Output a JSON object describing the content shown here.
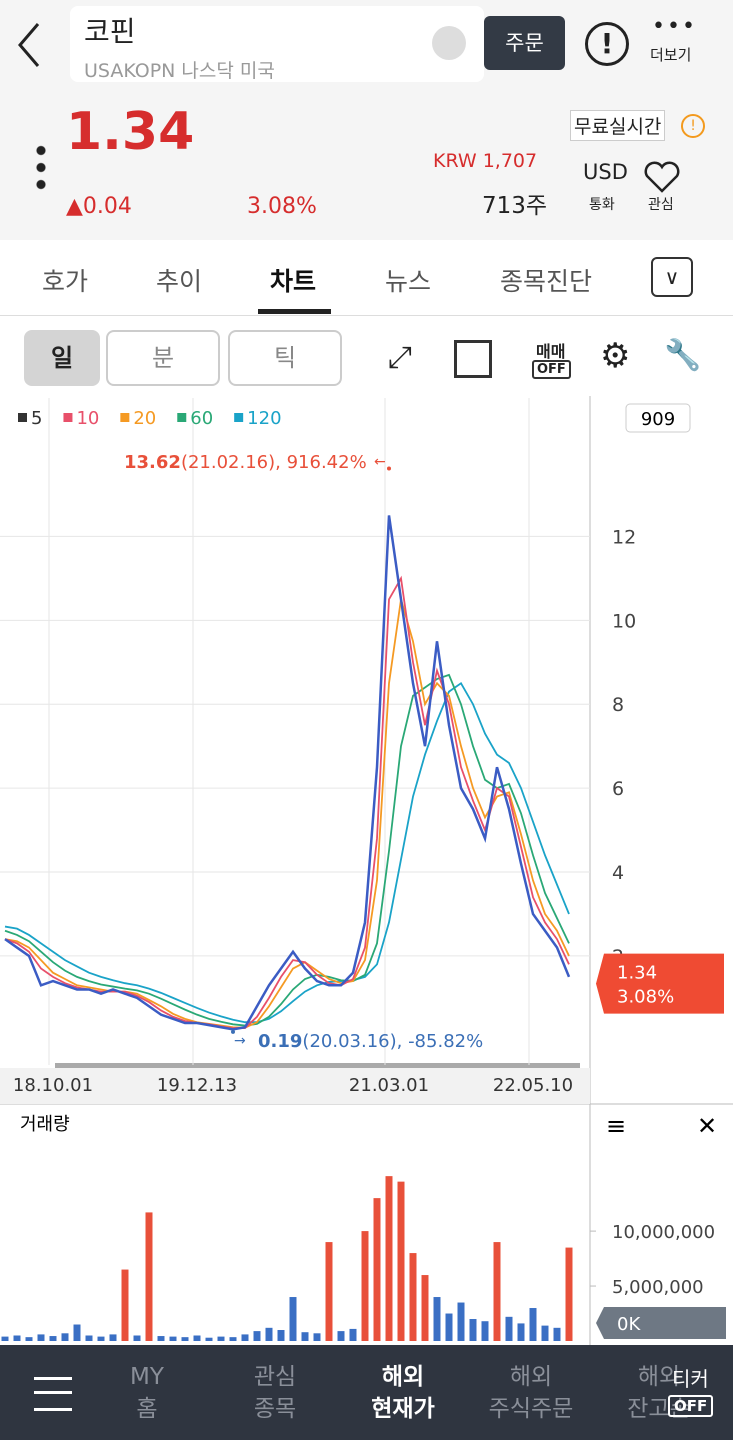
{
  "header": {
    "name": "코핀",
    "sub": "USAKOPN 나스닥 미국",
    "order": "주문",
    "more": "더보기",
    "price": "1.34",
    "change": "0.04",
    "change_pct": "3.08%",
    "realtime": "무료실시간",
    "krw": "KRW 1,707",
    "shares": "713주",
    "currency": "USD",
    "currency_label": "통화",
    "watch": "관심"
  },
  "tabs": [
    "호가",
    "추이",
    "차트",
    "뉴스",
    "종목진단"
  ],
  "toolbar": {
    "periods": [
      "일",
      "분",
      "틱"
    ],
    "trade": "매매",
    "trade_state": "OFF"
  },
  "chart_data": [
    {
      "type": "line",
      "box_label": "909",
      "categories": [
        null,
        null,
        null,
        null,
        "18.10.01",
        null,
        null,
        null,
        null,
        null,
        null,
        null,
        null,
        null,
        null,
        null,
        "19.12.13",
        null,
        null,
        null,
        null,
        null,
        null,
        null,
        null,
        null,
        null,
        null,
        null,
        null,
        null,
        null,
        "21.03.01",
        null,
        null,
        null,
        null,
        null,
        null,
        null,
        null,
        null,
        null,
        null,
        "22.05.10",
        null,
        null,
        null
      ],
      "series": [
        {
          "name": "5",
          "color": "#3b5cc4",
          "legend_color": "#333333",
          "values": [
            2.4,
            2.2,
            2.0,
            1.3,
            1.4,
            1.3,
            1.2,
            1.2,
            1.1,
            1.2,
            1.1,
            1.0,
            0.8,
            0.6,
            0.5,
            0.4,
            0.4,
            0.35,
            0.3,
            0.25,
            0.3,
            0.8,
            1.3,
            1.7,
            2.1,
            1.7,
            1.4,
            1.3,
            1.3,
            1.6,
            2.8,
            6.5,
            12.5,
            10.5,
            8.5,
            7.0,
            9.5,
            7.5,
            6.0,
            5.5,
            4.8,
            6.5,
            5.5,
            4.2,
            3.0,
            2.6,
            2.2,
            1.5
          ]
        },
        {
          "name": "10",
          "color": "#e8506a",
          "legend_color": "#e8506a",
          "values": [
            2.4,
            2.3,
            2.1,
            1.7,
            1.5,
            1.35,
            1.25,
            1.2,
            1.15,
            1.15,
            1.15,
            1.05,
            0.9,
            0.7,
            0.55,
            0.45,
            0.4,
            0.37,
            0.32,
            0.28,
            0.28,
            0.55,
            1.0,
            1.5,
            1.9,
            1.85,
            1.55,
            1.35,
            1.3,
            1.45,
            2.2,
            4.8,
            10.5,
            11.0,
            9.0,
            7.5,
            8.8,
            8.0,
            6.5,
            5.7,
            5.0,
            6.0,
            5.8,
            4.6,
            3.4,
            2.8,
            2.4,
            1.8
          ]
        },
        {
          "name": "20",
          "color": "#f59a23",
          "legend_color": "#f59a23",
          "values": [
            2.4,
            2.35,
            2.2,
            1.9,
            1.6,
            1.45,
            1.3,
            1.25,
            1.2,
            1.15,
            1.15,
            1.1,
            0.95,
            0.8,
            0.62,
            0.5,
            0.42,
            0.38,
            0.34,
            0.3,
            0.29,
            0.42,
            0.8,
            1.25,
            1.7,
            1.85,
            1.65,
            1.45,
            1.35,
            1.4,
            1.9,
            3.8,
            8.5,
            10.5,
            9.5,
            8.0,
            8.5,
            8.2,
            7.0,
            6.0,
            5.3,
            5.8,
            5.9,
            4.9,
            3.8,
            3.0,
            2.6,
            2.0
          ]
        },
        {
          "name": "60",
          "color": "#2aa876",
          "legend_color": "#2aa876",
          "values": [
            2.6,
            2.5,
            2.35,
            2.1,
            1.85,
            1.65,
            1.5,
            1.4,
            1.32,
            1.27,
            1.22,
            1.18,
            1.1,
            0.98,
            0.85,
            0.72,
            0.6,
            0.5,
            0.43,
            0.37,
            0.34,
            0.38,
            0.55,
            0.85,
            1.2,
            1.45,
            1.55,
            1.5,
            1.42,
            1.4,
            1.55,
            2.3,
            4.5,
            7.0,
            8.2,
            8.4,
            8.6,
            8.7,
            8.0,
            7.0,
            6.2,
            6.0,
            6.1,
            5.4,
            4.4,
            3.5,
            2.9,
            2.3
          ]
        },
        {
          "name": "120",
          "color": "#1aa3c8",
          "legend_color": "#1aa3c8",
          "values": [
            2.7,
            2.65,
            2.5,
            2.3,
            2.1,
            1.9,
            1.75,
            1.6,
            1.5,
            1.42,
            1.35,
            1.3,
            1.22,
            1.12,
            1.0,
            0.88,
            0.76,
            0.65,
            0.56,
            0.48,
            0.42,
            0.42,
            0.5,
            0.68,
            0.92,
            1.15,
            1.3,
            1.38,
            1.4,
            1.42,
            1.5,
            1.8,
            2.8,
            4.3,
            5.8,
            6.8,
            7.6,
            8.3,
            8.5,
            8.0,
            7.3,
            6.8,
            6.6,
            6.0,
            5.2,
            4.4,
            3.7,
            3.0
          ]
        }
      ],
      "ylim": [
        -0.6,
        15.3
      ],
      "yticks": [
        2,
        4,
        6,
        8,
        10,
        12
      ],
      "grid": true,
      "annotations": [
        {
          "value": 13.62,
          "label": "13.62",
          "text": "(21.02.16), 916.42%",
          "color": "#e8503a"
        },
        {
          "value": 0.19,
          "label": "0.19",
          "text": "(20.03.16), -85.82%",
          "color": "#3b6fb6"
        }
      ],
      "current": {
        "value": 1.34,
        "label": "1.34"
      }
    },
    {
      "type": "bar",
      "title": "거래량",
      "color": "#3a6fc4",
      "values": [
        400000,
        500000,
        350000,
        600000,
        450000,
        700000,
        1500000,
        500000,
        400000,
        600000,
        6500000,
        500000,
        11700000,
        450000,
        400000,
        350000,
        500000,
        300000,
        400000,
        350000,
        600000,
        900000,
        1200000,
        1000000,
        4000000,
        800000,
        700000,
        9000000,
        900000,
        1100000,
        10000000,
        13000000,
        15000000,
        14500000,
        8000000,
        6000000,
        4000000,
        2500000,
        3500000,
        2000000,
        1800000,
        9000000,
        2200000,
        1600000,
        3000000,
        1400000,
        1200000,
        8500000
      ],
      "ylim": [
        0,
        21200000
      ],
      "yticks": [
        {
          "value": 0,
          "label": "0K"
        },
        {
          "value": 5000000,
          "label": "5,000,000"
        },
        {
          "value": 10000000,
          "label": "10,000,000"
        }
      ]
    }
  ],
  "bottom_nav": {
    "items": [
      [
        "MY",
        "홈"
      ],
      [
        "관심",
        "종목"
      ],
      [
        "해외",
        "현재가"
      ],
      [
        "해외",
        "주식주문"
      ],
      [
        "해외",
        "잔고손"
      ]
    ],
    "ticker": "티커",
    "ticker_state": "OFF"
  }
}
